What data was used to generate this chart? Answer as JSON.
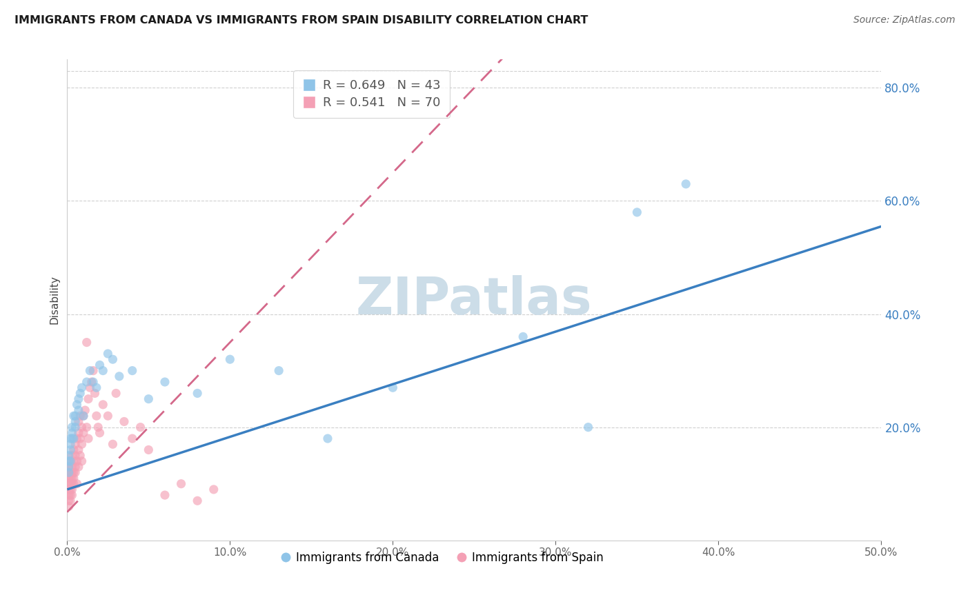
{
  "title": "IMMIGRANTS FROM CANADA VS IMMIGRANTS FROM SPAIN DISABILITY CORRELATION CHART",
  "source": "Source: ZipAtlas.com",
  "xlabel": "Immigrants from Canada",
  "ylabel": "Disability",
  "xlim": [
    0.0,
    0.5
  ],
  "ylim": [
    0.0,
    0.85
  ],
  "xticks": [
    0.0,
    0.1,
    0.2,
    0.3,
    0.4,
    0.5
  ],
  "yticks_right": [
    0.2,
    0.4,
    0.6,
    0.8
  ],
  "legend_canada": "R = 0.649   N = 43",
  "legend_spain": "R = 0.541   N = 70",
  "canada_color": "#8fc4e8",
  "spain_color": "#f4a0b5",
  "canada_line_color": "#3a7fc1",
  "spain_line_color": "#d4688a",
  "watermark": "ZIPatlas",
  "watermark_color": "#ccdde8",
  "canada_line": [
    0.0,
    0.09,
    0.5,
    0.555
  ],
  "spain_line": [
    0.0,
    0.05,
    0.5,
    1.55
  ],
  "canada_x": [
    0.001,
    0.001,
    0.001,
    0.001,
    0.002,
    0.002,
    0.002,
    0.002,
    0.003,
    0.003,
    0.003,
    0.004,
    0.004,
    0.005,
    0.005,
    0.005,
    0.006,
    0.007,
    0.007,
    0.008,
    0.009,
    0.01,
    0.012,
    0.014,
    0.016,
    0.018,
    0.02,
    0.022,
    0.025,
    0.028,
    0.032,
    0.04,
    0.05,
    0.06,
    0.08,
    0.1,
    0.13,
    0.16,
    0.2,
    0.28,
    0.32,
    0.35,
    0.38
  ],
  "canada_y": [
    0.15,
    0.14,
    0.12,
    0.13,
    0.16,
    0.17,
    0.14,
    0.18,
    0.18,
    0.19,
    0.2,
    0.22,
    0.18,
    0.21,
    0.22,
    0.2,
    0.24,
    0.25,
    0.23,
    0.26,
    0.27,
    0.22,
    0.28,
    0.3,
    0.28,
    0.27,
    0.31,
    0.3,
    0.33,
    0.32,
    0.29,
    0.3,
    0.25,
    0.28,
    0.26,
    0.32,
    0.3,
    0.18,
    0.27,
    0.36,
    0.2,
    0.58,
    0.63
  ],
  "spain_x": [
    0.001,
    0.001,
    0.001,
    0.001,
    0.001,
    0.001,
    0.001,
    0.001,
    0.002,
    0.002,
    0.002,
    0.002,
    0.002,
    0.002,
    0.002,
    0.003,
    0.003,
    0.003,
    0.003,
    0.003,
    0.003,
    0.003,
    0.004,
    0.004,
    0.004,
    0.004,
    0.004,
    0.005,
    0.005,
    0.005,
    0.005,
    0.006,
    0.006,
    0.006,
    0.007,
    0.007,
    0.007,
    0.007,
    0.008,
    0.008,
    0.008,
    0.009,
    0.009,
    0.009,
    0.01,
    0.01,
    0.011,
    0.012,
    0.012,
    0.013,
    0.013,
    0.014,
    0.015,
    0.016,
    0.017,
    0.018,
    0.019,
    0.02,
    0.022,
    0.025,
    0.028,
    0.03,
    0.035,
    0.04,
    0.045,
    0.05,
    0.06,
    0.07,
    0.08,
    0.09
  ],
  "spain_y": [
    0.1,
    0.08,
    0.12,
    0.06,
    0.11,
    0.09,
    0.07,
    0.13,
    0.1,
    0.11,
    0.08,
    0.12,
    0.07,
    0.09,
    0.14,
    0.11,
    0.12,
    0.1,
    0.13,
    0.08,
    0.15,
    0.09,
    0.14,
    0.12,
    0.1,
    0.16,
    0.11,
    0.15,
    0.13,
    0.17,
    0.12,
    0.18,
    0.14,
    0.1,
    0.16,
    0.19,
    0.13,
    0.21,
    0.18,
    0.15,
    0.22,
    0.17,
    0.2,
    0.14,
    0.19,
    0.22,
    0.23,
    0.35,
    0.2,
    0.25,
    0.18,
    0.27,
    0.28,
    0.3,
    0.26,
    0.22,
    0.2,
    0.19,
    0.24,
    0.22,
    0.17,
    0.26,
    0.21,
    0.18,
    0.2,
    0.16,
    0.08,
    0.1,
    0.07,
    0.09
  ]
}
